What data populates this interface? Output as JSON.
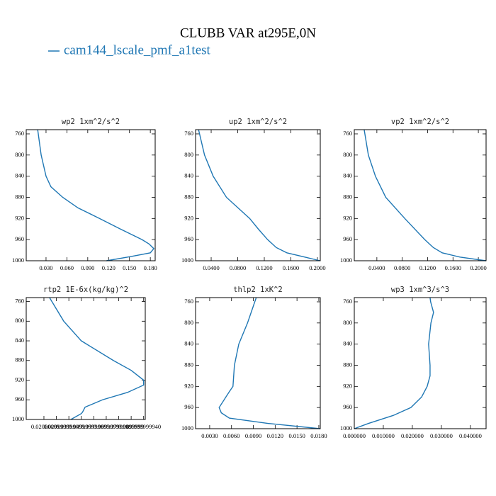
{
  "title": "CLUBB VAR at295E,0N",
  "legend": {
    "name": "cam144_lscale_pmf_a1test",
    "color": "#1f77b4"
  },
  "chart_data": [
    {
      "type": "line",
      "title": "wp2  1xm^2/s^2",
      "levels": [
        752,
        800,
        840,
        860,
        880,
        900,
        920,
        940,
        960,
        968,
        977,
        985,
        992,
        1000
      ],
      "values": [
        0.018,
        0.023,
        0.03,
        0.037,
        0.054,
        0.076,
        0.107,
        0.137,
        0.168,
        0.178,
        0.185,
        0.18,
        0.152,
        0.117
      ],
      "xlim": [
        0.0015,
        0.187
      ],
      "xticks": [
        {
          "value": 0.03,
          "label": "0.030"
        },
        {
          "value": 0.06,
          "label": "0.060"
        },
        {
          "value": 0.09,
          "label": "0.090"
        },
        {
          "value": 0.12,
          "label": "0.120"
        },
        {
          "value": 0.15,
          "label": "0.150"
        },
        {
          "value": 0.18,
          "label": "0.180"
        }
      ],
      "ylim": [
        1000,
        752
      ],
      "yticks": [
        760,
        800,
        840,
        880,
        920,
        960,
        1000
      ]
    },
    {
      "type": "line",
      "title": "up2  1xm^2/s^2",
      "levels": [
        752,
        800,
        840,
        880,
        920,
        940,
        960,
        975,
        985,
        993,
        1000
      ],
      "values": [
        0.021,
        0.03,
        0.043,
        0.063,
        0.098,
        0.111,
        0.125,
        0.138,
        0.154,
        0.181,
        0.204
      ],
      "xlim": [
        0.0165,
        0.2043
      ],
      "xticks": [
        {
          "value": 0.04,
          "label": "0.0400"
        },
        {
          "value": 0.08,
          "label": "0.0800"
        },
        {
          "value": 0.12,
          "label": "0.1200"
        },
        {
          "value": 0.16,
          "label": "0.1600"
        },
        {
          "value": 0.2,
          "label": "0.2000"
        }
      ],
      "ylim": [
        1000,
        752
      ],
      "yticks": [
        760,
        800,
        840,
        880,
        920,
        960,
        1000
      ]
    },
    {
      "type": "line",
      "title": "vp2  1xm^2/s^2",
      "levels": [
        752,
        800,
        840,
        880,
        920,
        960,
        975,
        985,
        993,
        1000
      ],
      "values": [
        0.02,
        0.0266,
        0.0377,
        0.054,
        0.084,
        0.1155,
        0.129,
        0.143,
        0.171,
        0.212
      ],
      "xlim": [
        0.0044,
        0.2122
      ],
      "xticks": [
        {
          "value": 0.04,
          "label": "0.0400"
        },
        {
          "value": 0.08,
          "label": "0.0800"
        },
        {
          "value": 0.12,
          "label": "0.1200"
        },
        {
          "value": 0.16,
          "label": "0.1600"
        },
        {
          "value": 0.2,
          "label": "0.2000"
        }
      ],
      "ylim": [
        1000,
        752
      ],
      "yticks": [
        760,
        800,
        840,
        880,
        920,
        960,
        1000
      ]
    },
    {
      "type": "line",
      "title": "rtp2  1E-6x(kg/kg)^2",
      "levels": [
        752,
        800,
        840,
        880,
        900,
        920,
        930,
        945,
        960,
        975,
        985,
        988,
        1000
      ],
      "values": [
        0.0245,
        0.0359,
        0.05,
        0.0757,
        0.09,
        0.1,
        0.1,
        0.087,
        0.067,
        0.053,
        0.051,
        0.05,
        0.0416
      ],
      "xlim": [
        0.0058,
        0.1013
      ],
      "xticks": [
        {
          "value": 0.02,
          "label": "0.0200000"
        },
        {
          "value": 0.03,
          "label": "0.0299999"
        },
        {
          "value": 0.04,
          "label": "0.0399999"
        },
        {
          "value": 0.05,
          "label": "0.0499999"
        },
        {
          "value": 0.06,
          "label": "0.0599999"
        },
        {
          "value": 0.07,
          "label": "0.0699999"
        },
        {
          "value": 0.08,
          "label": "0.0799999"
        },
        {
          "value": 0.09,
          "label": "0.0899999"
        },
        {
          "value": 0.1,
          "label": "0.0999999940"
        }
      ],
      "ylim": [
        1000,
        752
      ],
      "yticks": [
        760,
        800,
        840,
        880,
        920,
        960,
        1000
      ]
    },
    {
      "type": "line",
      "title": "thlp2  1xK^2",
      "levels": [
        752,
        760,
        780,
        800,
        840,
        880,
        920,
        930,
        960,
        970,
        980,
        990,
        1000
      ],
      "values": [
        0.0094,
        0.0092,
        0.0087,
        0.0082,
        0.007,
        0.0064,
        0.0062,
        0.0057,
        0.0043,
        0.0046,
        0.0057,
        0.011,
        0.0182
      ],
      "xlim": [
        0.00106,
        0.0182
      ],
      "xticks": [
        {
          "value": 0.003,
          "label": "0.0030"
        },
        {
          "value": 0.006,
          "label": "0.0060"
        },
        {
          "value": 0.009,
          "label": "0.0090"
        },
        {
          "value": 0.012,
          "label": "0.0120"
        },
        {
          "value": 0.015,
          "label": "0.0150"
        },
        {
          "value": 0.018,
          "label": "0.0180"
        }
      ],
      "ylim": [
        1000,
        752
      ],
      "yticks": [
        760,
        800,
        840,
        880,
        920,
        960,
        1000
      ]
    },
    {
      "type": "line",
      "title": "wp3  1xm^3/s^3",
      "levels": [
        752,
        760,
        780,
        800,
        840,
        880,
        900,
        920,
        940,
        960,
        975,
        990,
        1000
      ],
      "values": [
        0.0261,
        0.0263,
        0.0273,
        0.0264,
        0.0256,
        0.0261,
        0.0261,
        0.0251,
        0.0232,
        0.0195,
        0.0134,
        0.0049,
        0
      ],
      "xlim": [
        0,
        0.0454
      ],
      "xticks": [
        {
          "value": 0,
          "label": "0.000000"
        },
        {
          "value": 0.01,
          "label": "0.010000"
        },
        {
          "value": 0.02,
          "label": "0.020000"
        },
        {
          "value": 0.03,
          "label": "0.030000"
        },
        {
          "value": 0.04,
          "label": "0.040000"
        }
      ],
      "ylim": [
        1000,
        752
      ],
      "yticks": [
        760,
        800,
        840,
        880,
        920,
        960,
        1000
      ]
    }
  ]
}
